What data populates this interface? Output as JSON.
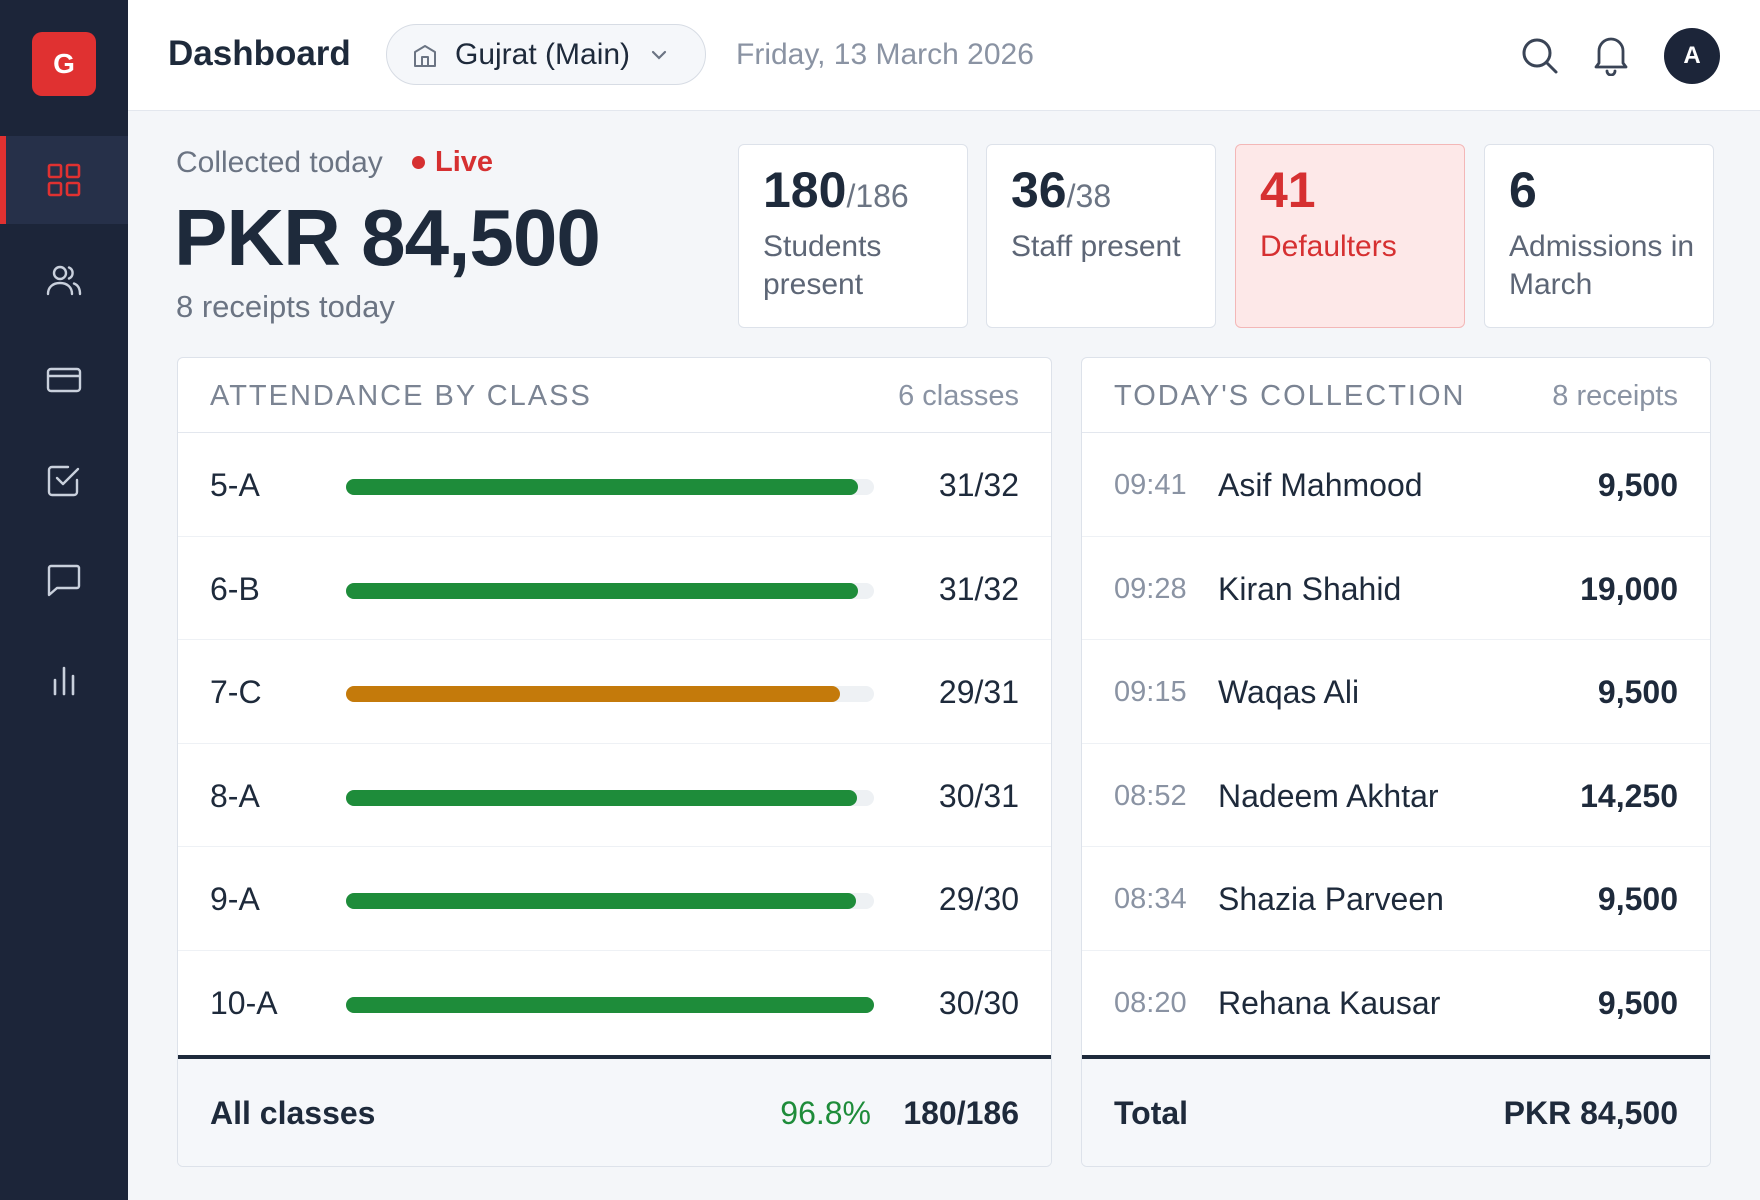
{
  "app": {
    "logo_letter": "G"
  },
  "sidebar": {
    "items": [
      {
        "icon": "grid-icon",
        "active": true
      },
      {
        "icon": "users-icon",
        "active": false
      },
      {
        "icon": "card-icon",
        "active": false
      },
      {
        "icon": "checkbox-icon",
        "active": false
      },
      {
        "icon": "chat-icon",
        "active": false
      },
      {
        "icon": "bar-chart-icon",
        "active": false
      }
    ]
  },
  "header": {
    "title": "Dashboard",
    "branch": "Gujrat (Main)",
    "date": "Friday, 13 March 2026",
    "avatar_initial": "A"
  },
  "hero": {
    "label": "Collected today",
    "live": "Live",
    "amount": "PKR 84,500",
    "receipts": "8 receipts today"
  },
  "stats": [
    {
      "value": "180",
      "of": "/186",
      "label": "Students present"
    },
    {
      "value": "36",
      "of": "/38",
      "label": "Staff present"
    },
    {
      "value": "41",
      "of": "",
      "label": "Defaulters"
    },
    {
      "value": "6",
      "of": "",
      "label": "Admissions in March"
    }
  ],
  "attendance": {
    "title": "ATTENDANCE BY CLASS",
    "count": "6 classes",
    "rows": [
      {
        "class": "5-A",
        "present": 31,
        "total": 32,
        "frac": "31/32",
        "warn": false
      },
      {
        "class": "6-B",
        "present": 31,
        "total": 32,
        "frac": "31/32",
        "warn": false
      },
      {
        "class": "7-C",
        "present": 29,
        "total": 31,
        "frac": "29/31",
        "warn": true
      },
      {
        "class": "8-A",
        "present": 30,
        "total": 31,
        "frac": "30/31",
        "warn": false
      },
      {
        "class": "9-A",
        "present": 29,
        "total": 30,
        "frac": "29/30",
        "warn": false
      },
      {
        "class": "10-A",
        "present": 30,
        "total": 30,
        "frac": "30/30",
        "warn": false
      }
    ],
    "footer": {
      "label": "All classes",
      "percent": "96.8%",
      "total": "180/186"
    }
  },
  "collection": {
    "title": "TODAY'S COLLECTION",
    "count": "8 receipts",
    "rows": [
      {
        "time": "09:41",
        "name": "Asif Mahmood",
        "amount": "9,500"
      },
      {
        "time": "09:28",
        "name": "Kiran Shahid",
        "amount": "19,000"
      },
      {
        "time": "09:15",
        "name": "Waqas Ali",
        "amount": "9,500"
      },
      {
        "time": "08:52",
        "name": "Nadeem Akhtar",
        "amount": "14,250"
      },
      {
        "time": "08:34",
        "name": "Shazia Parveen",
        "amount": "9,500"
      },
      {
        "time": "08:20",
        "name": "Rehana Kausar",
        "amount": "9,500"
      }
    ],
    "footer": {
      "label": "Total",
      "total": "PKR 84,500"
    }
  },
  "colors": {
    "brand": "#e03131",
    "sidebar": "#1c2539",
    "good": "#1e8c3a",
    "warn": "#c47a0b"
  }
}
